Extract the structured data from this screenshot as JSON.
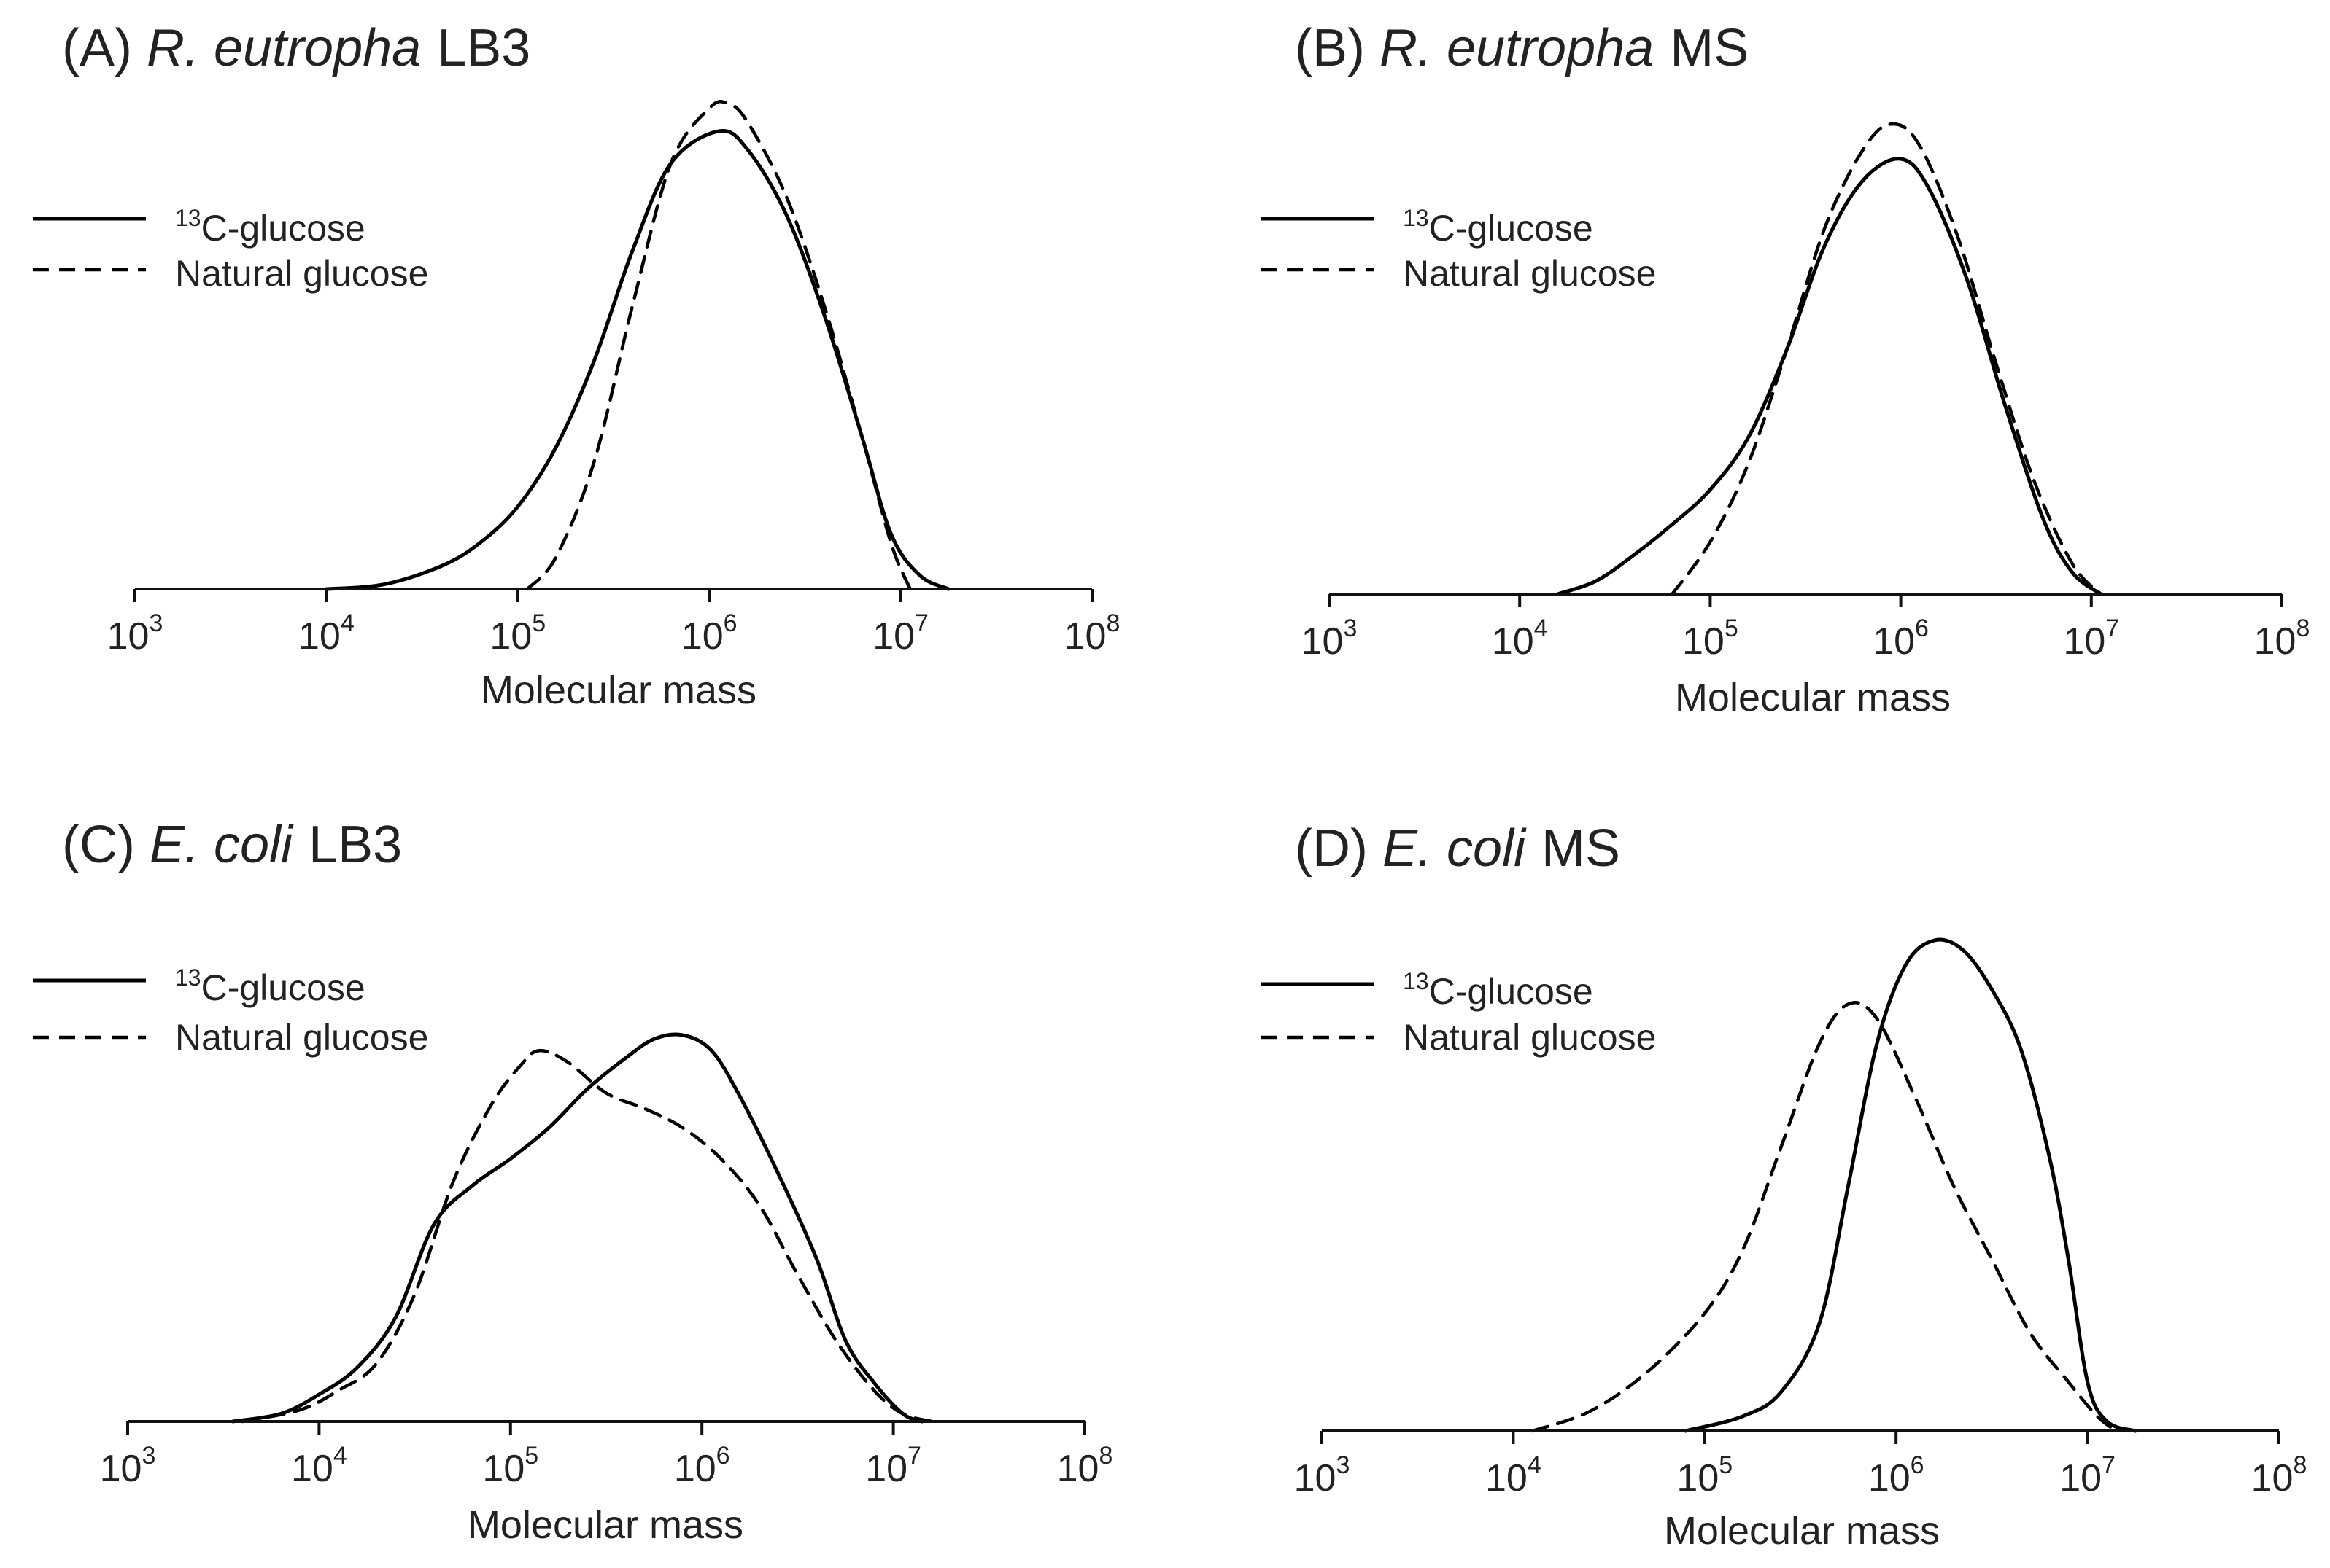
{
  "chart_data": [
    {
      "type": "line",
      "panel": "A",
      "title_prefix": "(A) ",
      "title_organism": "R. eutropha",
      "title_medium": "LB3",
      "xlabel": "Molecular mass",
      "ylabel": "",
      "xscale": "log",
      "xlim_exp": [
        3,
        8
      ],
      "ylim": [
        0,
        1
      ],
      "x_ticks": [
        {
          "base": "10",
          "exp": "3"
        },
        {
          "base": "10",
          "exp": "4"
        },
        {
          "base": "10",
          "exp": "5"
        },
        {
          "base": "10",
          "exp": "6"
        },
        {
          "base": "10",
          "exp": "7"
        },
        {
          "base": "10",
          "exp": "8"
        }
      ],
      "legend": [
        {
          "sup": "13",
          "text": "C-glucose",
          "style": "solid"
        },
        {
          "sup": "",
          "text": "Natural glucose",
          "style": "dashed"
        }
      ],
      "series": [
        {
          "name": "13C-glucose",
          "style": "solid",
          "points": [
            [
              4.0,
              0.0
            ],
            [
              4.3,
              0.01
            ],
            [
              4.6,
              0.05
            ],
            [
              4.8,
              0.1
            ],
            [
              5.0,
              0.18
            ],
            [
              5.2,
              0.31
            ],
            [
              5.4,
              0.5
            ],
            [
              5.6,
              0.74
            ],
            [
              5.8,
              0.93
            ],
            [
              6.05,
              1.0
            ],
            [
              6.2,
              0.96
            ],
            [
              6.4,
              0.82
            ],
            [
              6.6,
              0.6
            ],
            [
              6.8,
              0.33
            ],
            [
              6.95,
              0.12
            ],
            [
              7.1,
              0.03
            ],
            [
              7.25,
              0.0
            ]
          ]
        },
        {
          "name": "Natural glucose",
          "style": "dashed",
          "points": [
            [
              5.05,
              0.0
            ],
            [
              5.2,
              0.07
            ],
            [
              5.4,
              0.28
            ],
            [
              5.6,
              0.62
            ],
            [
              5.8,
              0.93
            ],
            [
              6.0,
              1.05
            ],
            [
              6.1,
              1.06
            ],
            [
              6.2,
              1.02
            ],
            [
              6.4,
              0.86
            ],
            [
              6.6,
              0.62
            ],
            [
              6.8,
              0.33
            ],
            [
              6.95,
              0.1
            ],
            [
              7.05,
              0.0
            ]
          ]
        }
      ]
    },
    {
      "type": "line",
      "panel": "B",
      "title_prefix": "(B) ",
      "title_organism": "R. eutropha",
      "title_medium": "MS",
      "xlabel": "Molecular mass",
      "ylabel": "",
      "xscale": "log",
      "xlim_exp": [
        3,
        8
      ],
      "ylim": [
        0,
        1
      ],
      "x_ticks": [
        {
          "base": "10",
          "exp": "3"
        },
        {
          "base": "10",
          "exp": "4"
        },
        {
          "base": "10",
          "exp": "5"
        },
        {
          "base": "10",
          "exp": "6"
        },
        {
          "base": "10",
          "exp": "7"
        },
        {
          "base": "10",
          "exp": "8"
        }
      ],
      "legend": [
        {
          "sup": "13",
          "text": "C-glucose",
          "style": "solid"
        },
        {
          "sup": "",
          "text": "Natural glucose",
          "style": "dashed"
        }
      ],
      "series": [
        {
          "name": "13C-glucose",
          "style": "solid",
          "points": [
            [
              4.2,
              0.0
            ],
            [
              4.4,
              0.03
            ],
            [
              4.6,
              0.09
            ],
            [
              4.8,
              0.16
            ],
            [
              5.0,
              0.24
            ],
            [
              5.2,
              0.36
            ],
            [
              5.4,
              0.56
            ],
            [
              5.6,
              0.8
            ],
            [
              5.8,
              0.95
            ],
            [
              6.0,
              1.0
            ],
            [
              6.15,
              0.93
            ],
            [
              6.35,
              0.72
            ],
            [
              6.55,
              0.43
            ],
            [
              6.75,
              0.17
            ],
            [
              6.9,
              0.05
            ],
            [
              7.05,
              0.0
            ]
          ]
        },
        {
          "name": "Natural glucose",
          "style": "dashed",
          "points": [
            [
              4.8,
              0.0
            ],
            [
              5.0,
              0.12
            ],
            [
              5.2,
              0.3
            ],
            [
              5.4,
              0.56
            ],
            [
              5.6,
              0.84
            ],
            [
              5.8,
              1.02
            ],
            [
              5.95,
              1.08
            ],
            [
              6.1,
              1.03
            ],
            [
              6.3,
              0.82
            ],
            [
              6.5,
              0.53
            ],
            [
              6.7,
              0.26
            ],
            [
              6.9,
              0.07
            ],
            [
              7.05,
              0.0
            ]
          ]
        }
      ]
    },
    {
      "type": "line",
      "panel": "C",
      "title_prefix": "(C) ",
      "title_organism": "E. coli",
      "title_medium": "LB3",
      "xlabel": "Molecular mass",
      "ylabel": "",
      "xscale": "log",
      "xlim_exp": [
        3,
        8
      ],
      "ylim": [
        0,
        1
      ],
      "x_ticks": [
        {
          "base": "10",
          "exp": "3"
        },
        {
          "base": "10",
          "exp": "4"
        },
        {
          "base": "10",
          "exp": "5"
        },
        {
          "base": "10",
          "exp": "6"
        },
        {
          "base": "10",
          "exp": "7"
        },
        {
          "base": "10",
          "exp": "8"
        }
      ],
      "legend": [
        {
          "sup": "13",
          "text": "C-glucose",
          "style": "solid"
        },
        {
          "sup": "",
          "text": "Natural glucose",
          "style": "dashed"
        }
      ],
      "series": [
        {
          "name": "13C-glucose",
          "style": "solid",
          "points": [
            [
              3.55,
              0.0
            ],
            [
              3.8,
              0.02
            ],
            [
              4.0,
              0.07
            ],
            [
              4.2,
              0.14
            ],
            [
              4.4,
              0.27
            ],
            [
              4.6,
              0.51
            ],
            [
              4.8,
              0.61
            ],
            [
              5.0,
              0.68
            ],
            [
              5.2,
              0.76
            ],
            [
              5.4,
              0.86
            ],
            [
              5.6,
              0.94
            ],
            [
              5.75,
              0.99
            ],
            [
              5.9,
              1.0
            ],
            [
              6.05,
              0.96
            ],
            [
              6.2,
              0.84
            ],
            [
              6.4,
              0.64
            ],
            [
              6.6,
              0.42
            ],
            [
              6.75,
              0.21
            ],
            [
              6.9,
              0.1
            ],
            [
              7.05,
              0.02
            ],
            [
              7.15,
              0.0
            ]
          ]
        },
        {
          "name": "Natural glucose",
          "style": "dashed",
          "points": [
            [
              3.6,
              0.0
            ],
            [
              3.9,
              0.03
            ],
            [
              4.1,
              0.08
            ],
            [
              4.3,
              0.15
            ],
            [
              4.5,
              0.33
            ],
            [
              4.7,
              0.62
            ],
            [
              4.9,
              0.82
            ],
            [
              5.05,
              0.92
            ],
            [
              5.15,
              0.96
            ],
            [
              5.3,
              0.93
            ],
            [
              5.5,
              0.85
            ],
            [
              5.7,
              0.81
            ],
            [
              5.9,
              0.76
            ],
            [
              6.1,
              0.68
            ],
            [
              6.3,
              0.56
            ],
            [
              6.5,
              0.38
            ],
            [
              6.7,
              0.21
            ],
            [
              6.9,
              0.08
            ],
            [
              7.05,
              0.02
            ],
            [
              7.2,
              0.0
            ]
          ]
        }
      ]
    },
    {
      "type": "line",
      "panel": "D",
      "title_prefix": "(D) ",
      "title_organism": "E. coli",
      "title_medium": "MS",
      "xlabel": "Molecular mass",
      "ylabel": "",
      "xscale": "log",
      "xlim_exp": [
        3,
        8
      ],
      "ylim": [
        0,
        1
      ],
      "x_ticks": [
        {
          "base": "10",
          "exp": "3"
        },
        {
          "base": "10",
          "exp": "4"
        },
        {
          "base": "10",
          "exp": "5"
        },
        {
          "base": "10",
          "exp": "6"
        },
        {
          "base": "10",
          "exp": "7"
        },
        {
          "base": "10",
          "exp": "8"
        }
      ],
      "legend": [
        {
          "sup": "13",
          "text": "C-glucose",
          "style": "solid"
        },
        {
          "sup": "",
          "text": "Natural glucose",
          "style": "dashed"
        }
      ],
      "series": [
        {
          "name": "13C-glucose",
          "style": "solid",
          "points": [
            [
              4.9,
              0.0
            ],
            [
              5.2,
              0.03
            ],
            [
              5.4,
              0.08
            ],
            [
              5.6,
              0.22
            ],
            [
              5.75,
              0.5
            ],
            [
              5.9,
              0.79
            ],
            [
              6.05,
              0.95
            ],
            [
              6.2,
              1.0
            ],
            [
              6.35,
              0.98
            ],
            [
              6.5,
              0.9
            ],
            [
              6.65,
              0.78
            ],
            [
              6.8,
              0.56
            ],
            [
              6.9,
              0.35
            ],
            [
              7.0,
              0.1
            ],
            [
              7.1,
              0.02
            ],
            [
              7.25,
              0.0
            ]
          ]
        },
        {
          "name": "Natural glucose",
          "style": "dashed",
          "points": [
            [
              4.1,
              0.0
            ],
            [
              4.4,
              0.04
            ],
            [
              4.7,
              0.12
            ],
            [
              5.0,
              0.24
            ],
            [
              5.2,
              0.37
            ],
            [
              5.4,
              0.58
            ],
            [
              5.6,
              0.79
            ],
            [
              5.75,
              0.87
            ],
            [
              5.9,
              0.84
            ],
            [
              6.1,
              0.68
            ],
            [
              6.3,
              0.5
            ],
            [
              6.5,
              0.35
            ],
            [
              6.7,
              0.2
            ],
            [
              6.9,
              0.1
            ],
            [
              7.05,
              0.03
            ],
            [
              7.15,
              0.0
            ]
          ]
        }
      ]
    }
  ]
}
